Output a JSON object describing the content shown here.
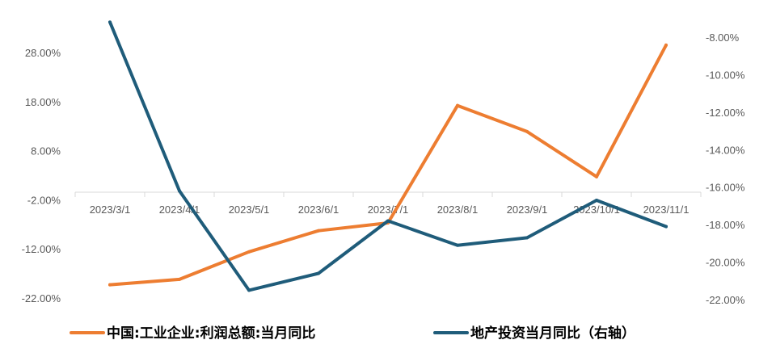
{
  "chart_data": {
    "type": "line",
    "categories": [
      "2023/3/1",
      "2023/4/1",
      "2023/5/1",
      "2023/6/1",
      "2023/7/1",
      "2023/8/1",
      "2023/9/1",
      "2023/10/1",
      "2023/11/1"
    ],
    "series": [
      {
        "name": "中国:工业企业:利润总额:当月同比",
        "axis": "left",
        "color": "#ED7D31",
        "values": [
          -19.3,
          -18.2,
          -12.6,
          -8.3,
          -6.7,
          17.2,
          11.9,
          2.7,
          29.5
        ]
      },
      {
        "name": "地产投资当月同比（右轴）",
        "axis": "right",
        "color": "#1F5C7A",
        "values": [
          -7.2,
          -16.2,
          -21.5,
          -20.6,
          -17.8,
          -19.1,
          -18.7,
          -16.7,
          -18.1
        ]
      }
    ],
    "y_left": {
      "ticks": [
        28,
        18,
        8,
        -2,
        -12,
        -22
      ],
      "tick_labels": [
        "28.00%",
        "18.00%",
        "8.00%",
        "-2.00%",
        "-12.00%",
        "-22.00%"
      ],
      "range": [
        -22,
        28
      ]
    },
    "y_right": {
      "ticks": [
        -8,
        -10,
        -12,
        -14,
        -16,
        -18,
        -20,
        -22
      ],
      "tick_labels": [
        "-8.00%",
        "-10.00%",
        "-12.00%",
        "-14.00%",
        "-16.00%",
        "-18.00%",
        "-20.00%",
        "-22.00%"
      ],
      "range": [
        -22,
        -8
      ]
    },
    "legend_position": "bottom",
    "grid": false
  }
}
